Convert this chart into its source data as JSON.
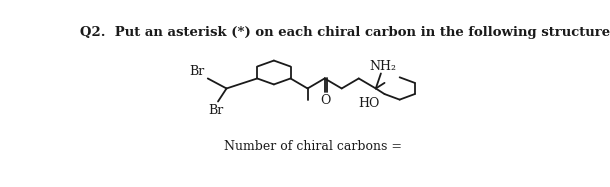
{
  "title": "Q2.  Put an asterisk (*) on each chiral carbon in the following structure:",
  "title_fontsize": 9.5,
  "title_bold": true,
  "footer_text": "Number of chiral carbons =",
  "footer_fontsize": 9,
  "bg_color": "#ffffff",
  "line_color": "#1a1a1a",
  "line_width": 1.3,
  "label_nh2": "NH₂",
  "label_br1": "Br",
  "label_br2": "Br",
  "label_ho": "HO",
  "label_o": "O",
  "label_fontsize": 9
}
